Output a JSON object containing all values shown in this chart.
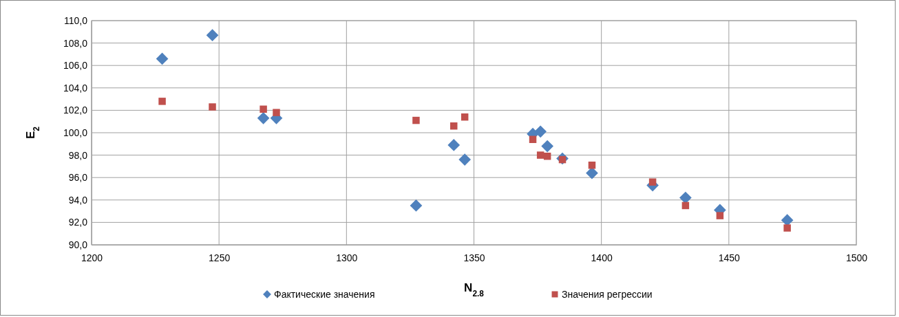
{
  "chart_data": {
    "type": "scatter",
    "xlabel": "N$_{2.8}$",
    "ylabel": "E$_{2}$",
    "xlim": [
      1200,
      1500
    ],
    "xticks": [
      1200,
      1250,
      1300,
      1350,
      1400,
      1450,
      1500
    ],
    "ylim": [
      90,
      110
    ],
    "yticks": [
      {
        "value": 90,
        "label": "90,0"
      },
      {
        "value": 92,
        "label": "92,0"
      },
      {
        "value": 94,
        "label": "94,0"
      },
      {
        "value": 96,
        "label": "96,0"
      },
      {
        "value": 98,
        "label": "98,0"
      },
      {
        "value": 100,
        "label": "100,0"
      },
      {
        "value": 102,
        "label": "102,0"
      },
      {
        "value": 104,
        "label": "104,0"
      },
      {
        "value": 106,
        "label": "106,0"
      },
      {
        "value": 108,
        "label": "108,0"
      },
      {
        "value": 110,
        "label": "110,0"
      }
    ],
    "grid": true,
    "legend": "bottom",
    "series": [
      {
        "name": "Фактические значения",
        "color": "#4f81bd",
        "marker": "diamond",
        "x": [
          1227.7,
          1247.4,
          1267.4,
          1272.5,
          1327.3,
          1342.1,
          1346.4,
          1373.1,
          1376.1,
          1378.8,
          1384.7,
          1396.3,
          1420.1,
          1433.0,
          1446.5,
          1472.9
        ],
        "values": [
          106.6,
          108.7,
          101.3,
          101.3,
          93.5,
          98.9,
          97.6,
          99.9,
          100.1,
          98.8,
          97.7,
          96.4,
          95.3,
          94.2,
          93.1,
          92.2
        ]
      },
      {
        "name": "Значения регрессии",
        "color": "#c0504d",
        "marker": "square",
        "x": [
          1227.7,
          1247.4,
          1267.4,
          1272.5,
          1327.3,
          1342.1,
          1346.4,
          1373.1,
          1376.1,
          1378.8,
          1384.7,
          1396.3,
          1420.1,
          1433.0,
          1446.5,
          1472.9
        ],
        "values": [
          102.8,
          102.3,
          102.1,
          101.8,
          101.1,
          100.6,
          101.4,
          99.4,
          98.0,
          97.9,
          97.6,
          97.1,
          95.6,
          93.5,
          92.6,
          91.5
        ]
      }
    ]
  }
}
